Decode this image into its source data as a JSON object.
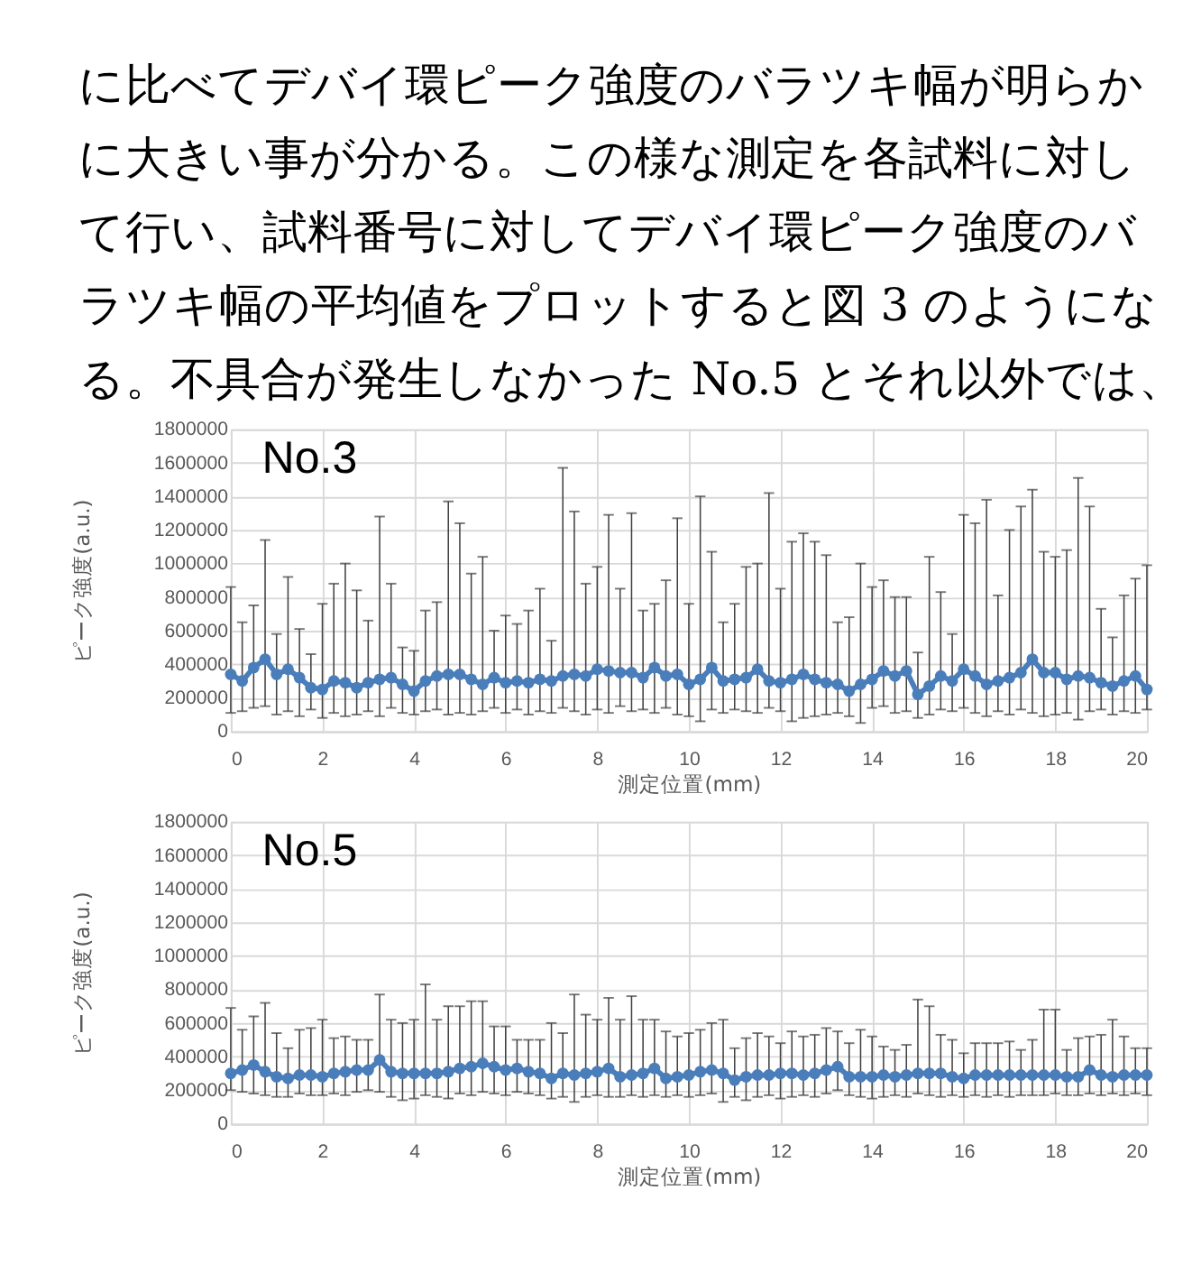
{
  "chart_data": [
    {
      "type": "other",
      "annotations": [
        "に比べてデバイ環ピーク強度のバラツキ幅が明らか",
        "に大きい事が分かる。この様な測定を各試料に対し",
        "て行い、試料番号に対してデバイ環ピーク強度のバ",
        "ラツキ幅の平均値をプロットすると図 3 のようにな",
        "る。不具合が発生しなかった No.5 とそれ以外では、"
      ]
    },
    {
      "type": "line",
      "title": "No.3",
      "xlabel": "測定位置(mm)",
      "ylabel": "ピーク強度(a.u.)",
      "xlim": [
        0,
        20
      ],
      "xticks": [
        0,
        2,
        4,
        6,
        8,
        10,
        12,
        14,
        16,
        18,
        20
      ],
      "ylim": [
        0,
        1800000
      ],
      "yticks": [
        0,
        200000,
        400000,
        600000,
        800000,
        1000000,
        1200000,
        1400000,
        1600000,
        1800000
      ],
      "grid": true,
      "legend": false,
      "marker": "circle",
      "line_style": "solid",
      "x": [
        0,
        0.25,
        0.5,
        0.75,
        1,
        1.25,
        1.5,
        1.75,
        2,
        2.25,
        2.5,
        2.75,
        3,
        3.25,
        3.5,
        3.75,
        4,
        4.25,
        4.5,
        4.75,
        5,
        5.25,
        5.5,
        5.75,
        6,
        6.25,
        6.5,
        6.75,
        7,
        7.25,
        7.5,
        7.75,
        8,
        8.25,
        8.5,
        8.75,
        9,
        9.25,
        9.5,
        9.75,
        10,
        10.25,
        10.5,
        10.75,
        11,
        11.25,
        11.5,
        11.75,
        12,
        12.25,
        12.5,
        12.75,
        13,
        13.25,
        13.5,
        13.75,
        14,
        14.25,
        14.5,
        14.75,
        15,
        15.25,
        15.5,
        15.75,
        16,
        16.25,
        16.5,
        16.75,
        17,
        17.25,
        17.5,
        17.75,
        18,
        18.25,
        18.5,
        18.75,
        19,
        19.25,
        19.5,
        19.75,
        20
      ],
      "series": [
        {
          "color": "#4a7ebb",
          "values": [
            340000,
            300000,
            380000,
            430000,
            340000,
            370000,
            320000,
            260000,
            250000,
            300000,
            290000,
            260000,
            290000,
            310000,
            320000,
            280000,
            240000,
            300000,
            330000,
            340000,
            340000,
            310000,
            280000,
            320000,
            290000,
            300000,
            290000,
            310000,
            300000,
            330000,
            340000,
            330000,
            370000,
            360000,
            350000,
            350000,
            320000,
            380000,
            330000,
            340000,
            280000,
            310000,
            380000,
            300000,
            310000,
            320000,
            370000,
            300000,
            290000,
            310000,
            340000,
            310000,
            290000,
            280000,
            240000,
            280000,
            310000,
            360000,
            330000,
            360000,
            220000,
            270000,
            330000,
            300000,
            370000,
            330000,
            280000,
            300000,
            320000,
            350000,
            430000,
            350000,
            350000,
            310000,
            330000,
            320000,
            290000,
            270000,
            300000,
            330000,
            250000
          ],
          "errors": [
            [
              110000,
              860000
            ],
            [
              120000,
              650000
            ],
            [
              140000,
              750000
            ],
            [
              150000,
              1140000
            ],
            [
              100000,
              580000
            ],
            [
              120000,
              920000
            ],
            [
              90000,
              610000
            ],
            [
              130000,
              460000
            ],
            [
              80000,
              760000
            ],
            [
              110000,
              880000
            ],
            [
              90000,
              1000000
            ],
            [
              100000,
              840000
            ],
            [
              120000,
              660000
            ],
            [
              90000,
              1280000
            ],
            [
              140000,
              880000
            ],
            [
              110000,
              500000
            ],
            [
              100000,
              480000
            ],
            [
              120000,
              720000
            ],
            [
              130000,
              770000
            ],
            [
              100000,
              1370000
            ],
            [
              110000,
              1240000
            ],
            [
              100000,
              940000
            ],
            [
              120000,
              1040000
            ],
            [
              140000,
              600000
            ],
            [
              110000,
              690000
            ],
            [
              130000,
              640000
            ],
            [
              100000,
              720000
            ],
            [
              120000,
              850000
            ],
            [
              110000,
              540000
            ],
            [
              140000,
              1570000
            ],
            [
              120000,
              1310000
            ],
            [
              100000,
              880000
            ],
            [
              130000,
              980000
            ],
            [
              110000,
              1290000
            ],
            [
              150000,
              850000
            ],
            [
              120000,
              1300000
            ],
            [
              130000,
              720000
            ],
            [
              110000,
              760000
            ],
            [
              140000,
              900000
            ],
            [
              100000,
              1270000
            ],
            [
              90000,
              760000
            ],
            [
              60000,
              1400000
            ],
            [
              130000,
              1070000
            ],
            [
              110000,
              650000
            ],
            [
              130000,
              760000
            ],
            [
              120000,
              980000
            ],
            [
              110000,
              1000000
            ],
            [
              140000,
              1420000
            ],
            [
              120000,
              850000
            ],
            [
              60000,
              1130000
            ],
            [
              80000,
              1180000
            ],
            [
              90000,
              1130000
            ],
            [
              100000,
              1050000
            ],
            [
              110000,
              650000
            ],
            [
              90000,
              680000
            ],
            [
              50000,
              1000000
            ],
            [
              140000,
              860000
            ],
            [
              150000,
              900000
            ],
            [
              110000,
              800000
            ],
            [
              120000,
              800000
            ],
            [
              80000,
              470000
            ],
            [
              100000,
              1040000
            ],
            [
              130000,
              830000
            ],
            [
              120000,
              580000
            ],
            [
              140000,
              1290000
            ],
            [
              110000,
              1240000
            ],
            [
              90000,
              1380000
            ],
            [
              120000,
              810000
            ],
            [
              100000,
              1200000
            ],
            [
              130000,
              1340000
            ],
            [
              110000,
              1440000
            ],
            [
              90000,
              1070000
            ],
            [
              100000,
              1040000
            ],
            [
              110000,
              1080000
            ],
            [
              70000,
              1510000
            ],
            [
              120000,
              1340000
            ],
            [
              130000,
              730000
            ],
            [
              100000,
              560000
            ],
            [
              120000,
              810000
            ],
            [
              110000,
              910000
            ],
            [
              130000,
              990000
            ]
          ]
        }
      ]
    },
    {
      "type": "line",
      "title": "No.5",
      "xlabel": "測定位置(mm)",
      "ylabel": "ピーク強度(a.u.)",
      "xlim": [
        0,
        20
      ],
      "xticks": [
        0,
        2,
        4,
        6,
        8,
        10,
        12,
        14,
        16,
        18,
        20
      ],
      "ylim": [
        0,
        1800000
      ],
      "yticks": [
        0,
        200000,
        400000,
        600000,
        800000,
        1000000,
        1200000,
        1400000,
        1600000,
        1800000
      ],
      "grid": true,
      "legend": false,
      "marker": "circle",
      "line_style": "solid",
      "x": [
        0,
        0.25,
        0.5,
        0.75,
        1,
        1.25,
        1.5,
        1.75,
        2,
        2.25,
        2.5,
        2.75,
        3,
        3.25,
        3.5,
        3.75,
        4,
        4.25,
        4.5,
        4.75,
        5,
        5.25,
        5.5,
        5.75,
        6,
        6.25,
        6.5,
        6.75,
        7,
        7.25,
        7.5,
        7.75,
        8,
        8.25,
        8.5,
        8.75,
        9,
        9.25,
        9.5,
        9.75,
        10,
        10.25,
        10.5,
        10.75,
        11,
        11.25,
        11.5,
        11.75,
        12,
        12.25,
        12.5,
        12.75,
        13,
        13.25,
        13.5,
        13.75,
        14,
        14.25,
        14.5,
        14.75,
        15,
        15.25,
        15.5,
        15.75,
        16,
        16.25,
        16.5,
        16.75,
        17,
        17.25,
        17.5,
        17.75,
        18,
        18.25,
        18.5,
        18.75,
        19,
        19.25,
        19.5,
        19.75,
        20
      ],
      "series": [
        {
          "color": "#4a7ebb",
          "values": [
            300000,
            320000,
            350000,
            310000,
            280000,
            270000,
            290000,
            290000,
            280000,
            300000,
            310000,
            320000,
            320000,
            380000,
            310000,
            300000,
            300000,
            300000,
            300000,
            310000,
            330000,
            340000,
            360000,
            340000,
            320000,
            330000,
            310000,
            300000,
            270000,
            300000,
            290000,
            300000,
            310000,
            330000,
            280000,
            290000,
            300000,
            330000,
            270000,
            280000,
            290000,
            310000,
            320000,
            300000,
            260000,
            280000,
            290000,
            290000,
            300000,
            300000,
            290000,
            300000,
            320000,
            340000,
            280000,
            280000,
            280000,
            290000,
            280000,
            290000,
            300000,
            300000,
            300000,
            280000,
            270000,
            290000,
            290000,
            290000,
            290000,
            290000,
            290000,
            290000,
            290000,
            280000,
            280000,
            320000,
            290000,
            280000,
            290000,
            290000,
            290000
          ],
          "errors": [
            [
              200000,
              690000
            ],
            [
              190000,
              560000
            ],
            [
              180000,
              640000
            ],
            [
              170000,
              720000
            ],
            [
              160000,
              540000
            ],
            [
              160000,
              450000
            ],
            [
              180000,
              560000
            ],
            [
              170000,
              570000
            ],
            [
              170000,
              620000
            ],
            [
              180000,
              510000
            ],
            [
              170000,
              520000
            ],
            [
              190000,
              500000
            ],
            [
              200000,
              500000
            ],
            [
              190000,
              770000
            ],
            [
              160000,
              620000
            ],
            [
              140000,
              600000
            ],
            [
              150000,
              620000
            ],
            [
              170000,
              830000
            ],
            [
              160000,
              620000
            ],
            [
              150000,
              700000
            ],
            [
              180000,
              700000
            ],
            [
              170000,
              730000
            ],
            [
              190000,
              730000
            ],
            [
              180000,
              580000
            ],
            [
              170000,
              580000
            ],
            [
              190000,
              500000
            ],
            [
              180000,
              500000
            ],
            [
              170000,
              500000
            ],
            [
              150000,
              600000
            ],
            [
              160000,
              540000
            ],
            [
              130000,
              770000
            ],
            [
              160000,
              650000
            ],
            [
              170000,
              620000
            ],
            [
              160000,
              750000
            ],
            [
              160000,
              620000
            ],
            [
              170000,
              760000
            ],
            [
              160000,
              620000
            ],
            [
              170000,
              620000
            ],
            [
              160000,
              550000
            ],
            [
              170000,
              520000
            ],
            [
              160000,
              540000
            ],
            [
              170000,
              560000
            ],
            [
              180000,
              600000
            ],
            [
              130000,
              620000
            ],
            [
              160000,
              450000
            ],
            [
              140000,
              510000
            ],
            [
              160000,
              540000
            ],
            [
              170000,
              520000
            ],
            [
              150000,
              480000
            ],
            [
              160000,
              550000
            ],
            [
              170000,
              520000
            ],
            [
              160000,
              530000
            ],
            [
              180000,
              570000
            ],
            [
              200000,
              550000
            ],
            [
              170000,
              480000
            ],
            [
              160000,
              560000
            ],
            [
              150000,
              520000
            ],
            [
              160000,
              460000
            ],
            [
              170000,
              440000
            ],
            [
              160000,
              470000
            ],
            [
              180000,
              740000
            ],
            [
              170000,
              700000
            ],
            [
              160000,
              530000
            ],
            [
              170000,
              500000
            ],
            [
              160000,
              420000
            ],
            [
              170000,
              480000
            ],
            [
              160000,
              480000
            ],
            [
              170000,
              480000
            ],
            [
              160000,
              490000
            ],
            [
              170000,
              440000
            ],
            [
              170000,
              500000
            ],
            [
              170000,
              680000
            ],
            [
              180000,
              680000
            ],
            [
              170000,
              440000
            ],
            [
              170000,
              510000
            ],
            [
              180000,
              520000
            ],
            [
              170000,
              530000
            ],
            [
              180000,
              620000
            ],
            [
              170000,
              520000
            ],
            [
              180000,
              450000
            ],
            [
              170000,
              450000
            ]
          ]
        }
      ]
    }
  ]
}
